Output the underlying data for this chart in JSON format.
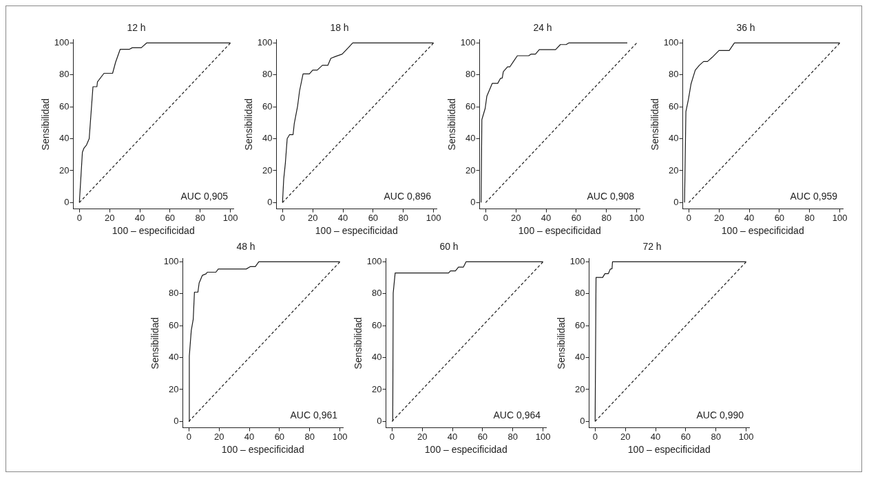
{
  "chart_data": [
    {
      "type": "line",
      "title": "12 h",
      "xlabel": "100 – especificidad",
      "ylabel": "Sensibilidad",
      "xlim": [
        -4,
        102
      ],
      "ylim": [
        -4,
        102
      ],
      "xticks": [
        0,
        20,
        40,
        60,
        80,
        100
      ],
      "yticks": [
        0,
        20,
        40,
        60,
        80,
        100
      ],
      "grid": false,
      "legend": false,
      "marker": "none",
      "annotations": [
        "AUC 0,905"
      ],
      "series": [
        {
          "color": "#1a1a1a",
          "line_style": "solid",
          "x": [
            0,
            2,
            3,
            4.7,
            6.5,
            9,
            11.6,
            12,
            16.3,
            22,
            24,
            27,
            33,
            35,
            41,
            44.5,
            100
          ],
          "values": [
            0,
            31.5,
            34,
            36,
            40,
            72.6,
            72.6,
            75.7,
            81,
            81,
            88,
            96,
            96,
            97,
            97,
            100,
            100
          ]
        },
        {
          "color": "#1a1a1a",
          "line_style": "dashed",
          "x": [
            0,
            100
          ],
          "values": [
            0,
            100
          ]
        }
      ]
    },
    {
      "type": "line",
      "title": "18 h",
      "xlabel": "100 – especificidad",
      "ylabel": "Sensibilidad",
      "xlim": [
        -4,
        102
      ],
      "ylim": [
        -4,
        102
      ],
      "xticks": [
        0,
        20,
        40,
        60,
        80,
        100
      ],
      "yticks": [
        0,
        20,
        40,
        60,
        80,
        100
      ],
      "grid": false,
      "legend": false,
      "marker": "none",
      "annotations": [
        "AUC 0,896"
      ],
      "series": [
        {
          "color": "#1a1a1a",
          "line_style": "solid",
          "x": [
            0,
            0.8,
            1.9,
            3.1,
            4.7,
            7,
            7.8,
            10,
            11.3,
            13.6,
            17.8,
            20,
            23,
            26.4,
            30,
            32,
            35,
            39.5,
            46.5,
            100
          ],
          "values": [
            0,
            14.7,
            24.8,
            40,
            42.6,
            42.6,
            49.6,
            60.5,
            70,
            80.6,
            80.6,
            83,
            83,
            86,
            86,
            90.4,
            91.5,
            93,
            100,
            100
          ]
        },
        {
          "color": "#1a1a1a",
          "line_style": "dashed",
          "x": [
            0,
            100
          ],
          "values": [
            0,
            100
          ]
        }
      ]
    },
    {
      "type": "line",
      "title": "24 h",
      "xlabel": "100 – especificidad",
      "ylabel": "Sensibilidad",
      "xlim": [
        -4,
        102
      ],
      "ylim": [
        -4,
        102
      ],
      "xticks": [
        0,
        20,
        40,
        60,
        80,
        100
      ],
      "yticks": [
        0,
        20,
        40,
        60,
        80,
        100
      ],
      "grid": false,
      "legend": false,
      "marker": "none",
      "annotations": [
        "AUC 0,908"
      ],
      "series": [
        {
          "color": "#1a1a1a",
          "line_style": "solid",
          "x": [
            -3,
            -2.5,
            -0.3,
            0.8,
            4.4,
            8,
            9.8,
            11,
            11.7,
            14.5,
            16,
            18.4,
            21,
            28.5,
            30,
            33,
            35.5,
            46.3,
            49.5,
            53.3,
            55,
            93.8
          ],
          "values": [
            0,
            52,
            59,
            66.7,
            74.7,
            74.7,
            77.8,
            78,
            82,
            85,
            85,
            88.4,
            92,
            92,
            93,
            93,
            95.8,
            95.8,
            99,
            99,
            100,
            100
          ]
        },
        {
          "color": "#1a1a1a",
          "line_style": "dashed",
          "x": [
            0,
            100
          ],
          "values": [
            0,
            100
          ]
        }
      ]
    },
    {
      "type": "line",
      "title": "36 h",
      "xlabel": "100 – especificidad",
      "ylabel": "Sensibilidad",
      "xlim": [
        -4,
        102
      ],
      "ylim": [
        -4,
        102
      ],
      "xticks": [
        0,
        20,
        40,
        60,
        80,
        100
      ],
      "yticks": [
        0,
        20,
        40,
        60,
        80,
        100
      ],
      "grid": false,
      "legend": false,
      "marker": "none",
      "annotations": [
        "AUC 0,959"
      ],
      "series": [
        {
          "color": "#1a1a1a",
          "line_style": "solid",
          "x": [
            -2.8,
            -1.9,
            -0.3,
            1.5,
            4.3,
            7,
            9.8,
            12.4,
            15.5,
            20,
            26.8,
            30.2,
            100
          ],
          "values": [
            0,
            57,
            64.3,
            74.4,
            83,
            86,
            88.4,
            88.4,
            91,
            95.3,
            95.3,
            100,
            100
          ]
        },
        {
          "color": "#1a1a1a",
          "line_style": "dashed",
          "x": [
            0,
            100
          ],
          "values": [
            0,
            100
          ]
        }
      ]
    },
    {
      "type": "line",
      "title": "48 h",
      "xlabel": "100 – especificidad",
      "ylabel": "Sensibilidad",
      "xlim": [
        -4,
        102
      ],
      "ylim": [
        -4,
        102
      ],
      "xticks": [
        0,
        20,
        40,
        60,
        80,
        100
      ],
      "yticks": [
        0,
        20,
        40,
        60,
        80,
        100
      ],
      "grid": false,
      "legend": false,
      "marker": "none",
      "annotations": [
        "AUC 0,961"
      ],
      "series": [
        {
          "color": "#1a1a1a",
          "line_style": "solid",
          "x": [
            0,
            0.3,
            1.6,
            2.9,
            3.7,
            6,
            6.8,
            8.9,
            11.4,
            12.2,
            17.9,
            19.5,
            38,
            40.6,
            44,
            46.3,
            100
          ],
          "values": [
            0,
            41,
            57,
            64,
            81,
            81,
            86.7,
            91.5,
            92.5,
            93.5,
            93.5,
            95.5,
            95.5,
            97,
            97,
            100,
            100
          ]
        },
        {
          "color": "#1a1a1a",
          "line_style": "dashed",
          "x": [
            0,
            100
          ],
          "values": [
            0,
            100
          ]
        }
      ]
    },
    {
      "type": "line",
      "title": "60 h",
      "xlabel": "100 – especificidad",
      "ylabel": "Sensibilidad",
      "xlim": [
        -4,
        102
      ],
      "ylim": [
        -4,
        102
      ],
      "xticks": [
        0,
        20,
        40,
        60,
        80,
        100
      ],
      "yticks": [
        0,
        20,
        40,
        60,
        80,
        100
      ],
      "grid": false,
      "legend": false,
      "marker": "none",
      "annotations": [
        "AUC 0,964"
      ],
      "series": [
        {
          "color": "#1a1a1a",
          "line_style": "solid",
          "x": [
            0.5,
            0.8,
            2.1,
            37.5,
            38.7,
            42,
            44,
            47.3,
            49,
            100
          ],
          "values": [
            0,
            80.4,
            93,
            93,
            94.3,
            94.3,
            96.7,
            96.7,
            100,
            100
          ]
        },
        {
          "color": "#1a1a1a",
          "line_style": "dashed",
          "x": [
            0,
            100
          ],
          "values": [
            0,
            100
          ]
        }
      ]
    },
    {
      "type": "line",
      "title": "72 h",
      "xlabel": "100 – especificidad",
      "ylabel": "Sensibilidad",
      "xlim": [
        -4,
        102
      ],
      "ylim": [
        -4,
        102
      ],
      "xticks": [
        0,
        20,
        40,
        60,
        80,
        100
      ],
      "yticks": [
        0,
        20,
        40,
        60,
        80,
        100
      ],
      "grid": false,
      "legend": false,
      "marker": "none",
      "annotations": [
        "AUC 0,990"
      ],
      "series": [
        {
          "color": "#1a1a1a",
          "line_style": "solid",
          "x": [
            0,
            0.6,
            5,
            6.5,
            8.8,
            10,
            11.2,
            11.5,
            100
          ],
          "values": [
            0,
            90.2,
            90.2,
            92.6,
            92.6,
            95.4,
            95.7,
            100,
            100
          ]
        },
        {
          "color": "#1a1a1a",
          "line_style": "dashed",
          "x": [
            0,
            100
          ],
          "values": [
            0,
            100
          ]
        }
      ]
    }
  ]
}
